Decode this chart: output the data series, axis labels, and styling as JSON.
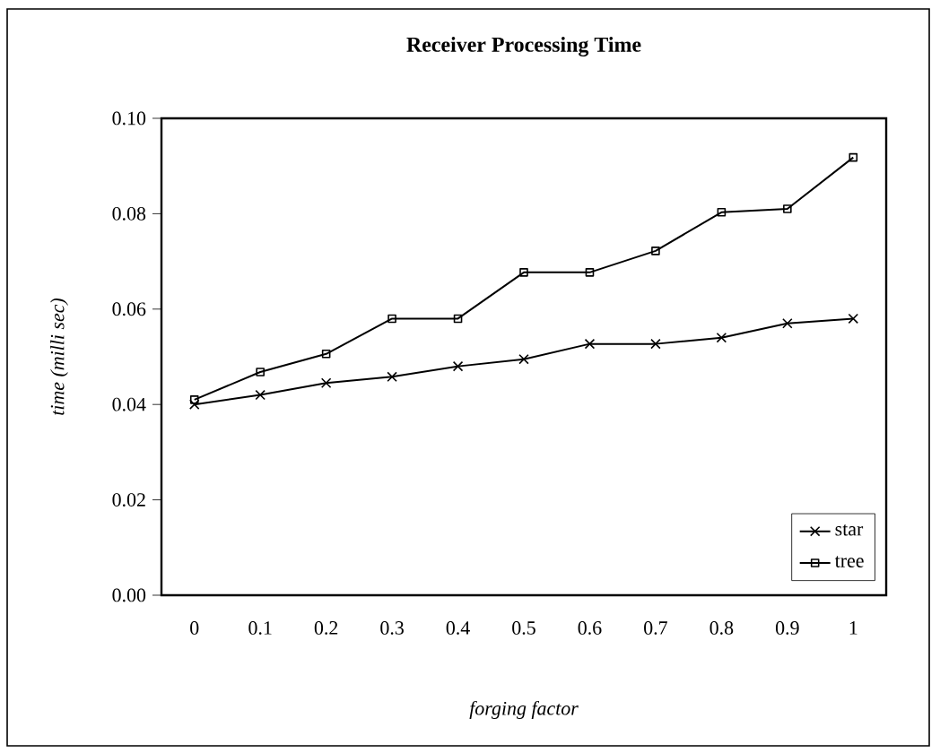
{
  "chart_data": {
    "type": "line",
    "title": "Receiver Processing Time",
    "xlabel": "forging factor",
    "ylabel": "time (milli sec)",
    "categories": [
      "0",
      "0.1",
      "0.2",
      "0.3",
      "0.4",
      "0.5",
      "0.6",
      "0.7",
      "0.8",
      "0.9",
      "1"
    ],
    "series": [
      {
        "name": "star",
        "color": "#000000",
        "marker": "cross",
        "values": [
          0.04,
          0.042,
          0.0445,
          0.0458,
          0.048,
          0.0495,
          0.0527,
          0.0527,
          0.054,
          0.057,
          0.058
        ]
      },
      {
        "name": "tree",
        "color": "#000000",
        "marker": "square",
        "values": [
          0.041,
          0.0468,
          0.0506,
          0.058,
          0.058,
          0.0677,
          0.0677,
          0.0722,
          0.0803,
          0.081,
          0.0918
        ]
      }
    ],
    "ylim": [
      0,
      0.1
    ],
    "yticks": [
      {
        "value": 0,
        "label": "0.00"
      },
      {
        "value": 0.02,
        "label": "0.02"
      },
      {
        "value": 0.04,
        "label": "0.04"
      },
      {
        "value": 0.06,
        "label": "0.06"
      },
      {
        "value": 0.08,
        "label": "0.08"
      },
      {
        "value": 0.1,
        "label": "0.10"
      }
    ],
    "grid": false,
    "legend": "bottom right",
    "line_style": "solid"
  }
}
